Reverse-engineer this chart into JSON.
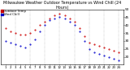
{
  "title": "Milwaukee Weather Outdoor Temperature vs Wind Chill (24 Hours)",
  "title_fontsize": 3.5,
  "background_color": "#ffffff",
  "grid_color": "#999999",
  "hours": [
    1,
    2,
    3,
    4,
    5,
    6,
    7,
    8,
    9,
    10,
    11,
    12,
    13,
    14,
    15,
    16,
    17,
    18,
    19,
    20,
    21,
    22,
    23,
    24
  ],
  "temp": [
    38,
    36,
    35,
    34,
    34,
    35,
    37,
    40,
    42,
    44,
    46,
    47,
    46,
    44,
    42,
    38,
    33,
    29,
    28,
    27,
    26,
    25,
    24,
    23
  ],
  "windchill": [
    30,
    29,
    28,
    27,
    26,
    28,
    31,
    36,
    40,
    43,
    44,
    45,
    44,
    42,
    40,
    36,
    30,
    25,
    23,
    22,
    21,
    20,
    19,
    18
  ],
  "temp_color": "#cc0000",
  "windchill_color": "#0000cc",
  "black_color": "#000000",
  "dot_size": 1.0,
  "ylim_min": 15,
  "ylim_max": 50,
  "ytick_values": [
    20,
    25,
    30,
    35,
    40,
    45,
    50
  ],
  "ytick_labels": [
    "20",
    "25",
    "30",
    "35",
    "40",
    "45",
    "50"
  ],
  "ylabel_fontsize": 3.0,
  "xlabel_fontsize": 2.8,
  "legend_fontsize": 2.8,
  "grid_lines_at": [
    3,
    6,
    9,
    12,
    15,
    18,
    21,
    24
  ]
}
